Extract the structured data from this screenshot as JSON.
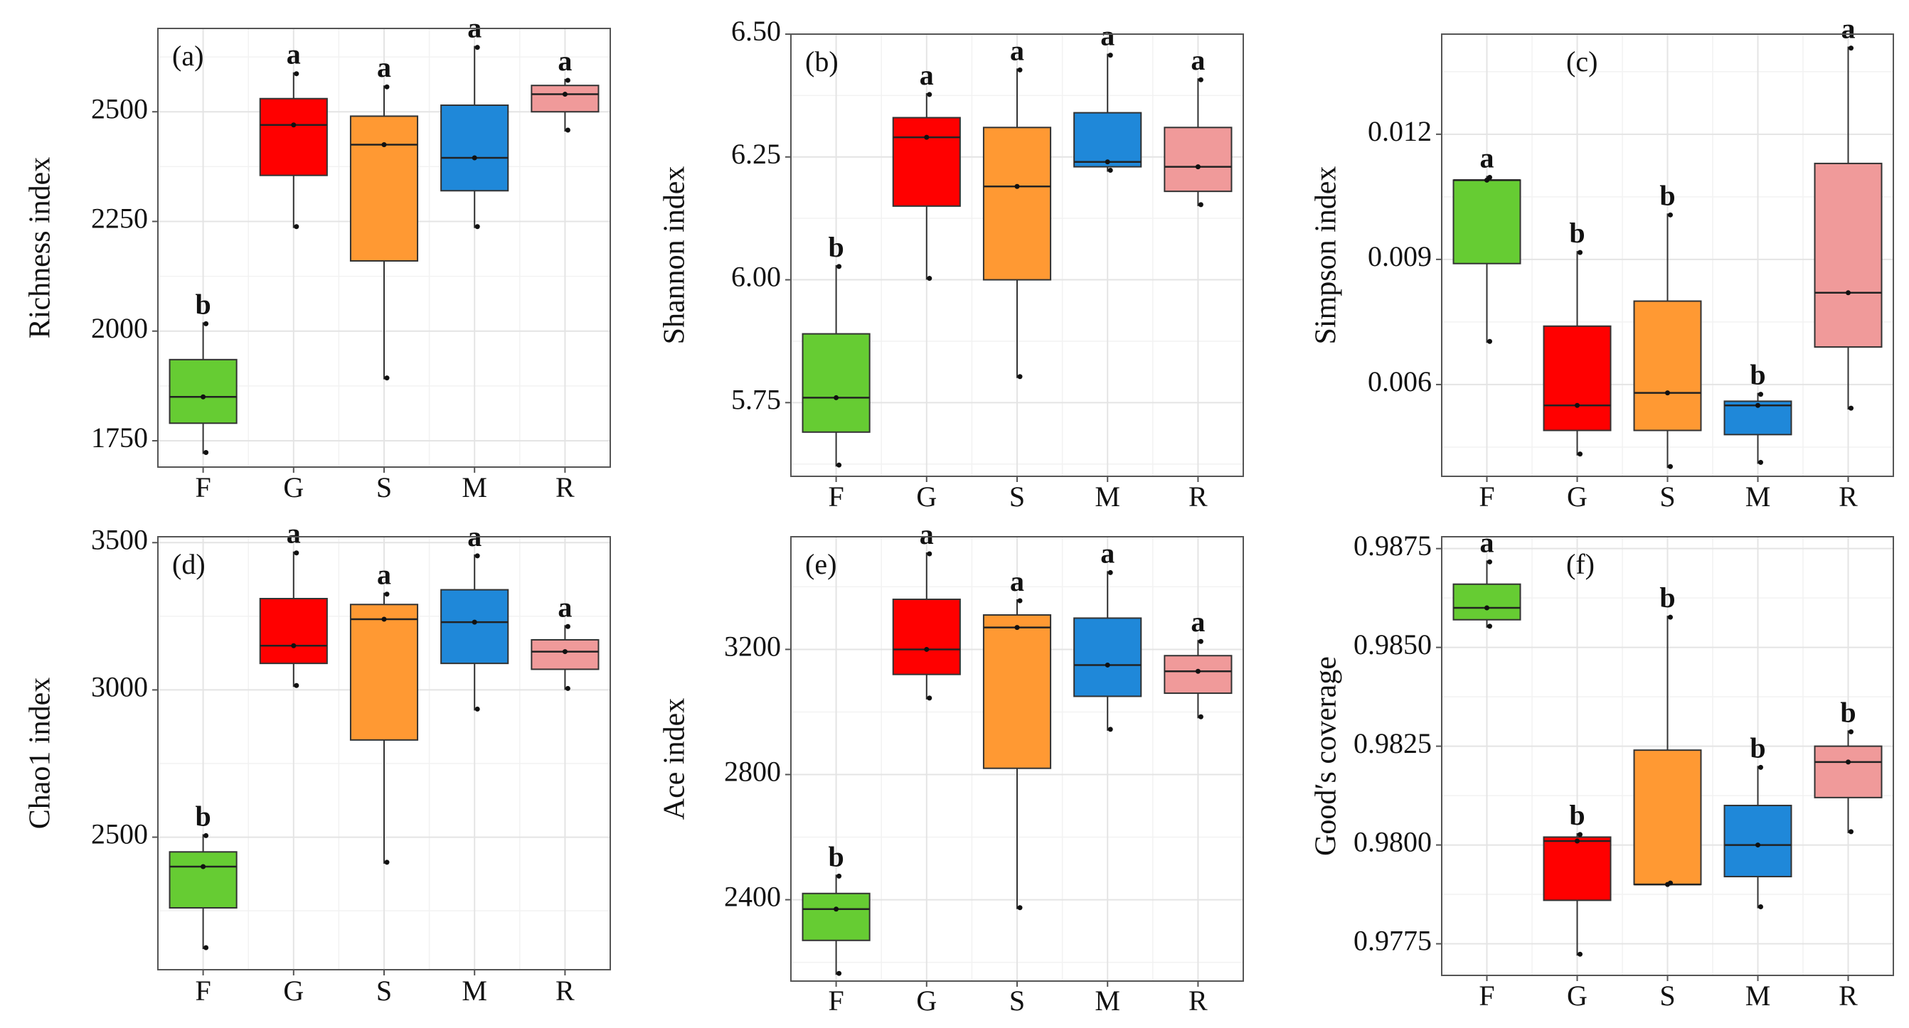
{
  "colors": {
    "F": "#66cc33",
    "G": "#ff0000",
    "S": "#ff9933",
    "M": "#1f88d9",
    "R": "#f09a9a"
  },
  "chart_data": [
    {
      "type": "box",
      "panel_label": "(a)",
      "ylabel": "Richness index",
      "categories": [
        "F",
        "G",
        "S",
        "M",
        "R"
      ],
      "yticks": [
        1750,
        2000,
        2250,
        2500
      ],
      "ytick_labels": [
        "1750",
        "2000",
        "2250",
        "2500"
      ],
      "ylim": [
        1690,
        2690
      ],
      "grid": true,
      "boxes": [
        {
          "min": 1720,
          "q1": 1790,
          "median": 1850,
          "q3": 1935,
          "max": 2020,
          "mean": 1850,
          "letter": "b"
        },
        {
          "min": 2235,
          "q1": 2355,
          "median": 2470,
          "q3": 2530,
          "max": 2590,
          "mean": 2470,
          "letter": "a"
        },
        {
          "min": 1890,
          "q1": 2160,
          "median": 2425,
          "q3": 2490,
          "max": 2560,
          "mean": 2425,
          "letter": "a"
        },
        {
          "min": 2235,
          "q1": 2320,
          "median": 2395,
          "q3": 2515,
          "max": 2650,
          "mean": 2395,
          "letter": "a"
        },
        {
          "min": 2455,
          "q1": 2500,
          "median": 2540,
          "q3": 2560,
          "max": 2575,
          "mean": 2540,
          "letter": "a"
        }
      ]
    },
    {
      "type": "box",
      "panel_label": "(b)",
      "ylabel": "Shannon index",
      "categories": [
        "F",
        "G",
        "S",
        "M",
        "R"
      ],
      "yticks": [
        5.75,
        6.0,
        6.25,
        6.5
      ],
      "ytick_labels": [
        "5.75",
        "6.00",
        "6.25",
        "6.50"
      ],
      "ylim": [
        5.6,
        6.5
      ],
      "grid": true,
      "boxes": [
        {
          "min": 5.62,
          "q1": 5.69,
          "median": 5.76,
          "q3": 5.89,
          "max": 6.03,
          "mean": 5.76,
          "letter": "b"
        },
        {
          "min": 6.0,
          "q1": 6.15,
          "median": 6.29,
          "q3": 6.33,
          "max": 6.38,
          "mean": 6.29,
          "letter": "a"
        },
        {
          "min": 5.8,
          "q1": 6.0,
          "median": 6.19,
          "q3": 6.31,
          "max": 6.43,
          "mean": 6.19,
          "letter": "a"
        },
        {
          "min": 6.22,
          "q1": 6.23,
          "median": 6.24,
          "q3": 6.34,
          "max": 6.46,
          "mean": 6.24,
          "letter": "a"
        },
        {
          "min": 6.15,
          "q1": 6.18,
          "median": 6.23,
          "q3": 6.31,
          "max": 6.41,
          "mean": 6.23,
          "letter": "a"
        }
      ]
    },
    {
      "type": "box",
      "panel_label": "(c)",
      "ylabel": "Simpson index",
      "categories": [
        "F",
        "G",
        "S",
        "M",
        "R"
      ],
      "yticks": [
        0.006,
        0.009,
        0.012
      ],
      "ytick_labels": [
        "0.006",
        "0.009",
        "0.012"
      ],
      "ylim": [
        0.0038,
        0.0144
      ],
      "grid": true,
      "boxes": [
        {
          "min": 0.007,
          "q1": 0.0089,
          "median": 0.0109,
          "q3": 0.0109,
          "max": 0.011,
          "mean": 0.0109,
          "letter": "a"
        },
        {
          "min": 0.0043,
          "q1": 0.0049,
          "median": 0.0055,
          "q3": 0.0074,
          "max": 0.0092,
          "mean": 0.0055,
          "letter": "b"
        },
        {
          "min": 0.004,
          "q1": 0.0049,
          "median": 0.0058,
          "q3": 0.008,
          "max": 0.0101,
          "mean": 0.0058,
          "letter": "b"
        },
        {
          "min": 0.0041,
          "q1": 0.0048,
          "median": 0.0055,
          "q3": 0.0056,
          "max": 0.0058,
          "mean": 0.0055,
          "letter": "b"
        },
        {
          "min": 0.0054,
          "q1": 0.0069,
          "median": 0.0082,
          "q3": 0.0113,
          "max": 0.0141,
          "mean": 0.0082,
          "letter": "a"
        }
      ]
    },
    {
      "type": "box",
      "panel_label": "(d)",
      "ylabel": "Chao1 index",
      "categories": [
        "F",
        "G",
        "S",
        "M",
        "R"
      ],
      "yticks": [
        2500,
        3000,
        3500
      ],
      "ytick_labels": [
        "2500",
        "3000",
        "3500"
      ],
      "ylim": [
        2050,
        3520
      ],
      "grid": true,
      "boxes": [
        {
          "min": 2120,
          "q1": 2260,
          "median": 2400,
          "q3": 2450,
          "max": 2510,
          "mean": 2400,
          "letter": "b"
        },
        {
          "min": 3010,
          "q1": 3090,
          "median": 3150,
          "q3": 3310,
          "max": 3470,
          "mean": 3150,
          "letter": "a"
        },
        {
          "min": 2410,
          "q1": 2830,
          "median": 3240,
          "q3": 3290,
          "max": 3330,
          "mean": 3240,
          "letter": "a"
        },
        {
          "min": 2930,
          "q1": 3090,
          "median": 3230,
          "q3": 3340,
          "max": 3460,
          "mean": 3230,
          "letter": "a"
        },
        {
          "min": 3000,
          "q1": 3070,
          "median": 3130,
          "q3": 3170,
          "max": 3220,
          "mean": 3130,
          "letter": "a"
        }
      ]
    },
    {
      "type": "box",
      "panel_label": "(e)",
      "ylabel": "Ace index",
      "categories": [
        "F",
        "G",
        "S",
        "M",
        "R"
      ],
      "yticks": [
        2400,
        2800,
        3200
      ],
      "ytick_labels": [
        "2400",
        "2800",
        "3200"
      ],
      "ylim": [
        2140,
        3560
      ],
      "grid": true,
      "boxes": [
        {
          "min": 2160,
          "q1": 2270,
          "median": 2370,
          "q3": 2420,
          "max": 2480,
          "mean": 2370,
          "letter": "b"
        },
        {
          "min": 3040,
          "q1": 3120,
          "median": 3200,
          "q3": 3360,
          "max": 3510,
          "mean": 3200,
          "letter": "a"
        },
        {
          "min": 2370,
          "q1": 2820,
          "median": 3270,
          "q3": 3310,
          "max": 3360,
          "mean": 3270,
          "letter": "a"
        },
        {
          "min": 2940,
          "q1": 3050,
          "median": 3150,
          "q3": 3300,
          "max": 3450,
          "mean": 3150,
          "letter": "a"
        },
        {
          "min": 2980,
          "q1": 3060,
          "median": 3130,
          "q3": 3180,
          "max": 3230,
          "mean": 3130,
          "letter": "a"
        }
      ]
    },
    {
      "type": "box",
      "panel_label": "(f)",
      "ylabel": "Good′s coverage",
      "categories": [
        "F",
        "G",
        "S",
        "M",
        "R"
      ],
      "yticks": [
        0.9775,
        0.98,
        0.9825,
        0.985,
        0.9875
      ],
      "ytick_labels": [
        "0.9775",
        "0.9800",
        "0.9825",
        "0.9850",
        "0.9875"
      ],
      "ylim": [
        0.9767,
        0.9878
      ],
      "grid": true,
      "boxes": [
        {
          "min": 0.9855,
          "q1": 0.9857,
          "median": 0.986,
          "q3": 0.9866,
          "max": 0.9872,
          "mean": 0.986,
          "letter": "a"
        },
        {
          "min": 0.9772,
          "q1": 0.9786,
          "median": 0.9801,
          "q3": 0.9802,
          "max": 0.9803,
          "mean": 0.9801,
          "letter": "b"
        },
        {
          "min": 0.979,
          "q1": 0.979,
          "median": 0.979,
          "q3": 0.9824,
          "max": 0.9858,
          "mean": 0.979,
          "letter": "b"
        },
        {
          "min": 0.9784,
          "q1": 0.9792,
          "median": 0.98,
          "q3": 0.981,
          "max": 0.982,
          "mean": 0.98,
          "letter": "b"
        },
        {
          "min": 0.9803,
          "q1": 0.9812,
          "median": 0.9821,
          "q3": 0.9825,
          "max": 0.9829,
          "mean": 0.9821,
          "letter": "b"
        }
      ]
    }
  ]
}
